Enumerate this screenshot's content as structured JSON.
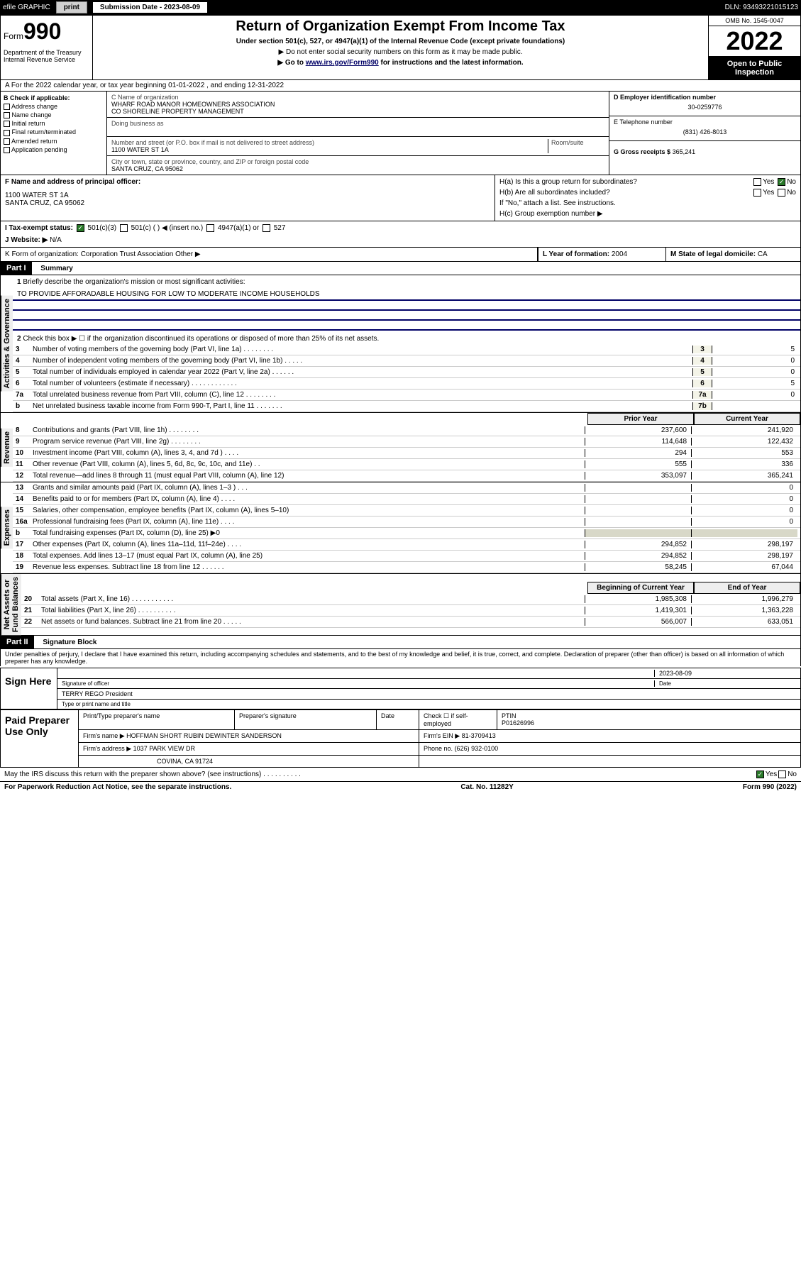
{
  "topbar": {
    "efile": "efile GRAPHIC",
    "print": "print",
    "subdate_lbl": "Submission Date - 2023-08-09",
    "dln": "DLN: 93493221015123"
  },
  "header": {
    "form_prefix": "Form",
    "form_num": "990",
    "dept": "Department of the Treasury\nInternal Revenue Service",
    "title": "Return of Organization Exempt From Income Tax",
    "sub1": "Under section 501(c), 527, or 4947(a)(1) of the Internal Revenue Code (except private foundations)",
    "sub2": "▶ Do not enter social security numbers on this form as it may be made public.",
    "sub3_pre": "▶ Go to ",
    "sub3_link": "www.irs.gov/Form990",
    "sub3_post": " for instructions and the latest information.",
    "omb": "OMB No. 1545-0047",
    "year": "2022",
    "inspect": "Open to Public Inspection"
  },
  "row_a": "A For the 2022 calendar year, or tax year beginning 01-01-2022   , and ending 12-31-2022",
  "col_b": {
    "head": "B Check if applicable:",
    "items": [
      "Address change",
      "Name change",
      "Initial return",
      "Final return/terminated",
      "Amended return",
      "Application pending"
    ]
  },
  "col_c": {
    "name_lbl": "C Name of organization",
    "name": "WHARF ROAD MANOR HOMEOWNERS ASSOCIATION\nCO SHORELINE PROPERTY MANAGEMENT",
    "dba_lbl": "Doing business as",
    "addr_lbl": "Number and street (or P.O. box if mail is not delivered to street address)",
    "room_lbl": "Room/suite",
    "addr": "1100 WATER ST 1A",
    "city_lbl": "City or town, state or province, country, and ZIP or foreign postal code",
    "city": "SANTA CRUZ, CA  95062"
  },
  "col_d": {
    "ein_lbl": "D Employer identification number",
    "ein": "30-0259776",
    "tel_lbl": "E Telephone number",
    "tel": "(831) 426-8013",
    "gross_lbl": "G Gross receipts $",
    "gross": "365,241"
  },
  "officer": {
    "lbl": "F  Name and address of principal officer:",
    "addr": "1100 WATER ST 1A\nSANTA CRUZ, CA  95062"
  },
  "h": {
    "ha": "H(a)  Is this a group return for subordinates?",
    "hb": "H(b)  Are all subordinates included?",
    "hb_note": "If \"No,\" attach a list. See instructions.",
    "hc": "H(c)  Group exemption number ▶",
    "yes": "Yes",
    "no": "No"
  },
  "line_i": {
    "lbl": "I   Tax-exempt status:",
    "o1": "501(c)(3)",
    "o2": "501(c) (   ) ◀ (insert no.)",
    "o3": "4947(a)(1) or",
    "o4": "527"
  },
  "line_j": {
    "lbl": "J   Website: ▶",
    "val": "N/A"
  },
  "line_k": "K Form of organization:       Corporation       Trust       Association       Other ▶",
  "line_l": {
    "lbl": "L Year of formation:",
    "val": "2004"
  },
  "line_m": {
    "lbl": "M State of legal domicile:",
    "val": "CA"
  },
  "part1": {
    "hdr": "Part I",
    "title": "Summary"
  },
  "summary": {
    "vert1": "Activities & Governance",
    "q1": "Briefly describe the organization's mission or most significant activities:",
    "mission": "TO PROVIDE AFFORADABLE HOUSING FOR LOW TO MODERATE INCOME HOUSEHOLDS",
    "q2": "Check this box ▶ ☐  if the organization discontinued its operations or disposed of more than 25% of its net assets.",
    "lines_gov": [
      {
        "n": "3",
        "t": "Number of voting members of the governing body (Part VI, line 1a)  .    .    .    .    .    .    .    .",
        "b": "3",
        "v": "5"
      },
      {
        "n": "4",
        "t": "Number of independent voting members of the governing body (Part VI, line 1b)  .    .    .    .    .",
        "b": "4",
        "v": "0"
      },
      {
        "n": "5",
        "t": "Total number of individuals employed in calendar year 2022 (Part V, line 2a)  .    .    .    .    .    .",
        "b": "5",
        "v": "0"
      },
      {
        "n": "6",
        "t": "Total number of volunteers (estimate if necessary)  .    .    .    .    .    .    .    .    .    .    .    .",
        "b": "6",
        "v": "5"
      },
      {
        "n": "7a",
        "t": "Total unrelated business revenue from Part VIII, column (C), line 12  .    .    .    .    .    .    .    .",
        "b": "7a",
        "v": "0"
      },
      {
        "n": "b",
        "t": "Net unrelated business taxable income from Form 990-T, Part I, line 11  .    .    .    .    .    .    .",
        "b": "7b",
        "v": ""
      }
    ],
    "hdr_prior": "Prior Year",
    "hdr_curr": "Current Year",
    "vert2": "Revenue",
    "lines_rev": [
      {
        "n": "8",
        "t": "Contributions and grants (Part VIII, line 1h)  .    .    .    .    .    .    .    .",
        "v1": "237,600",
        "v2": "241,920"
      },
      {
        "n": "9",
        "t": "Program service revenue (Part VIII, line 2g)  .    .    .    .    .    .    .    .",
        "v1": "114,648",
        "v2": "122,432"
      },
      {
        "n": "10",
        "t": "Investment income (Part VIII, column (A), lines 3, 4, and 7d )  .    .    .    .",
        "v1": "294",
        "v2": "553"
      },
      {
        "n": "11",
        "t": "Other revenue (Part VIII, column (A), lines 5, 6d, 8c, 9c, 10c, and 11e)  .    .",
        "v1": "555",
        "v2": "336"
      },
      {
        "n": "12",
        "t": "Total revenue—add lines 8 through 11 (must equal Part VIII, column (A), line 12)",
        "v1": "353,097",
        "v2": "365,241"
      }
    ],
    "vert3": "Expenses",
    "lines_exp": [
      {
        "n": "13",
        "t": "Grants and similar amounts paid (Part IX, column (A), lines 1–3 )  .    .    .",
        "v1": "",
        "v2": "0"
      },
      {
        "n": "14",
        "t": "Benefits paid to or for members (Part IX, column (A), line 4)  .    .    .    .",
        "v1": "",
        "v2": "0"
      },
      {
        "n": "15",
        "t": "Salaries, other compensation, employee benefits (Part IX, column (A), lines 5–10)",
        "v1": "",
        "v2": "0"
      },
      {
        "n": "16a",
        "t": "Professional fundraising fees (Part IX, column (A), line 11e)  .    .    .    .",
        "v1": "",
        "v2": "0"
      },
      {
        "n": "b",
        "t": "Total fundraising expenses (Part IX, column (D), line 25) ▶0",
        "v1": "",
        "v2": ""
      },
      {
        "n": "17",
        "t": "Other expenses (Part IX, column (A), lines 11a–11d, 11f–24e)  .    .    .    .",
        "v1": "294,852",
        "v2": "298,197"
      },
      {
        "n": "18",
        "t": "Total expenses. Add lines 13–17 (must equal Part IX, column (A), line 25)",
        "v1": "294,852",
        "v2": "298,197"
      },
      {
        "n": "19",
        "t": "Revenue less expenses. Subtract line 18 from line 12  .    .    .    .    .    .",
        "v1": "58,245",
        "v2": "67,044"
      }
    ],
    "vert4": "Net Assets or\nFund Balances",
    "hdr_beg": "Beginning of Current Year",
    "hdr_end": "End of Year",
    "lines_net": [
      {
        "n": "20",
        "t": "Total assets (Part X, line 16)  .    .    .    .    .    .    .    .    .    .    .",
        "v1": "1,985,308",
        "v2": "1,996,279"
      },
      {
        "n": "21",
        "t": "Total liabilities (Part X, line 26)  .    .    .    .    .    .    .    .    .    .",
        "v1": "1,419,301",
        "v2": "1,363,228"
      },
      {
        "n": "22",
        "t": "Net assets or fund balances. Subtract line 21 from line 20  .    .    .    .    .",
        "v1": "566,007",
        "v2": "633,051"
      }
    ]
  },
  "part2": {
    "hdr": "Part II",
    "title": "Signature Block"
  },
  "sig": {
    "perjury": "Under penalties of perjury, I declare that I have examined this return, including accompanying schedules and statements, and to the best of my knowledge and belief, it is true, correct, and complete. Declaration of preparer (other than officer) is based on all information of which preparer has any knowledge.",
    "sign_here": "Sign Here",
    "sig_officer": "Signature of officer",
    "date": "Date",
    "date_val": "2023-08-09",
    "name_title": "TERRY REGO President",
    "name_lbl": "Type or print name and title"
  },
  "prep": {
    "title": "Paid Preparer Use Only",
    "h1": "Print/Type preparer's name",
    "h2": "Preparer's signature",
    "h3": "Date",
    "h4_chk": "Check ☐ if self-employed",
    "h5": "PTIN",
    "ptin": "P01626996",
    "firm_lbl": "Firm's name    ▶",
    "firm": "HOFFMAN SHORT RUBIN DEWINTER SANDERSON",
    "ein_lbl": "Firm's EIN ▶",
    "ein": "81-3709413",
    "addr_lbl": "Firm's address ▶",
    "addr1": "1037 PARK VIEW DR",
    "addr2": "COVINA, CA  91724",
    "phone_lbl": "Phone no.",
    "phone": "(626) 932-0100"
  },
  "footer": {
    "discuss": "May the IRS discuss this return with the preparer shown above? (see instructions)   .    .    .    .    .    .    .    .    .    .",
    "yes": "Yes",
    "no": "No",
    "pra": "For Paperwork Reduction Act Notice, see the separate instructions.",
    "cat": "Cat. No. 11282Y",
    "form": "Form 990 (2022)"
  }
}
